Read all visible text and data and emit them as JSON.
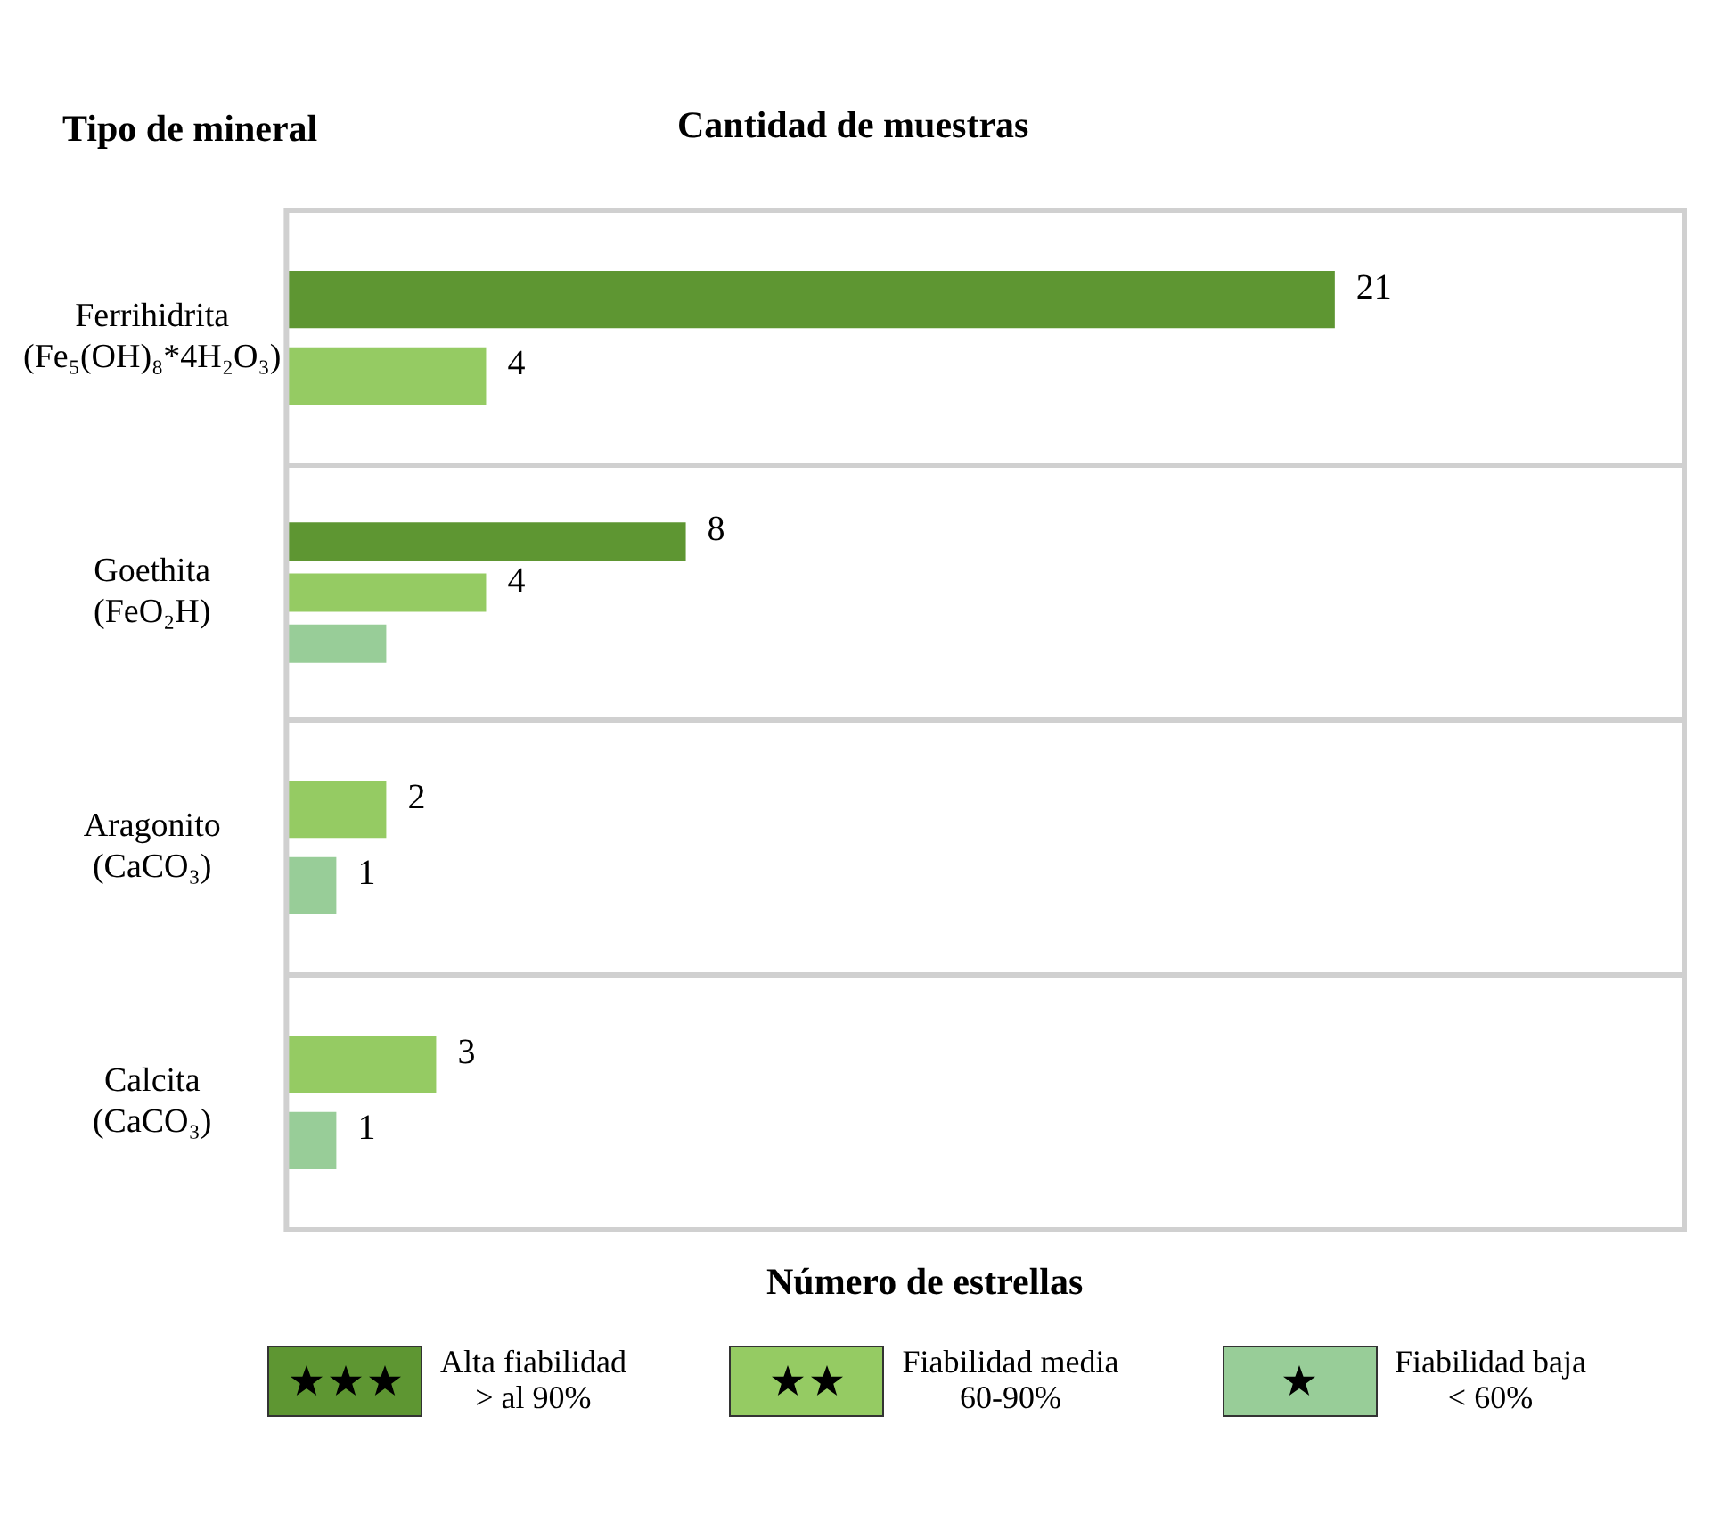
{
  "chart_data": {
    "type": "bar",
    "orientation": "horizontal",
    "title": "Cantidad de muestras",
    "ylabel": "Tipo de mineral",
    "legend_title": "Número de estrellas",
    "categories": [
      "Ferrihidrita\n(Fe₅(OH)₈*4H₂O₃)",
      "Goethita\n(FeO₂H)",
      "Aragonito\n(CaCO₃)",
      "Calcita\n(CaCO₃)"
    ],
    "series": [
      {
        "name": "Alta fiabilidad\n> al 90%",
        "color": "#5e9632",
        "values": [
          21,
          8,
          null,
          null
        ],
        "value_labels": [
          "21",
          "8",
          null,
          null
        ]
      },
      {
        "name": "Fiabilidad media\n60-90%",
        "color": "#95cb63",
        "values": [
          4,
          4,
          2,
          3
        ],
        "value_labels": [
          "4",
          "4",
          "2",
          "3"
        ]
      },
      {
        "name": "Fiabilidad baja\n< 60%",
        "color": "#98cd98",
        "values": [
          null,
          2,
          1,
          1
        ],
        "value_labels": [
          null,
          null,
          "1",
          "1"
        ]
      }
    ],
    "xlim": [
      0,
      28
    ],
    "tick_labels": "y",
    "grid": "y",
    "legend": "bottom"
  }
}
